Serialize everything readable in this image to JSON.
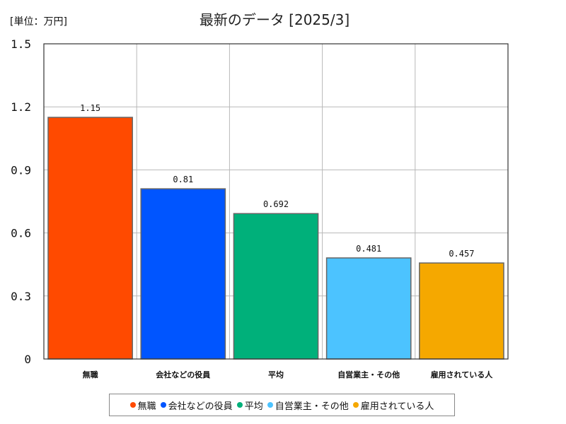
{
  "chart_data": {
    "type": "bar",
    "title": "最新のデータ [2025/3]",
    "unit_label": "[単位：万円]",
    "categories": [
      "無職",
      "会社などの役員",
      "平均",
      "自営業主・その他",
      "雇用されている人"
    ],
    "values": [
      1.15,
      0.81,
      0.692,
      0.481,
      0.457
    ],
    "value_labels": [
      "1.15",
      "0.81",
      "0.692",
      "0.481",
      "0.457"
    ],
    "colors": [
      "#ff4a00",
      "#0055ff",
      "#00b07a",
      "#4cc3ff",
      "#f5a800"
    ],
    "ylim": [
      0,
      1.5
    ],
    "yticks": [
      0,
      0.3,
      0.6,
      0.9,
      1.2,
      1.5
    ],
    "ytick_labels": [
      "0",
      "0.3",
      "0.6",
      "0.9",
      "1.2",
      "1.5"
    ],
    "grid": true,
    "legend_position": "bottom"
  }
}
